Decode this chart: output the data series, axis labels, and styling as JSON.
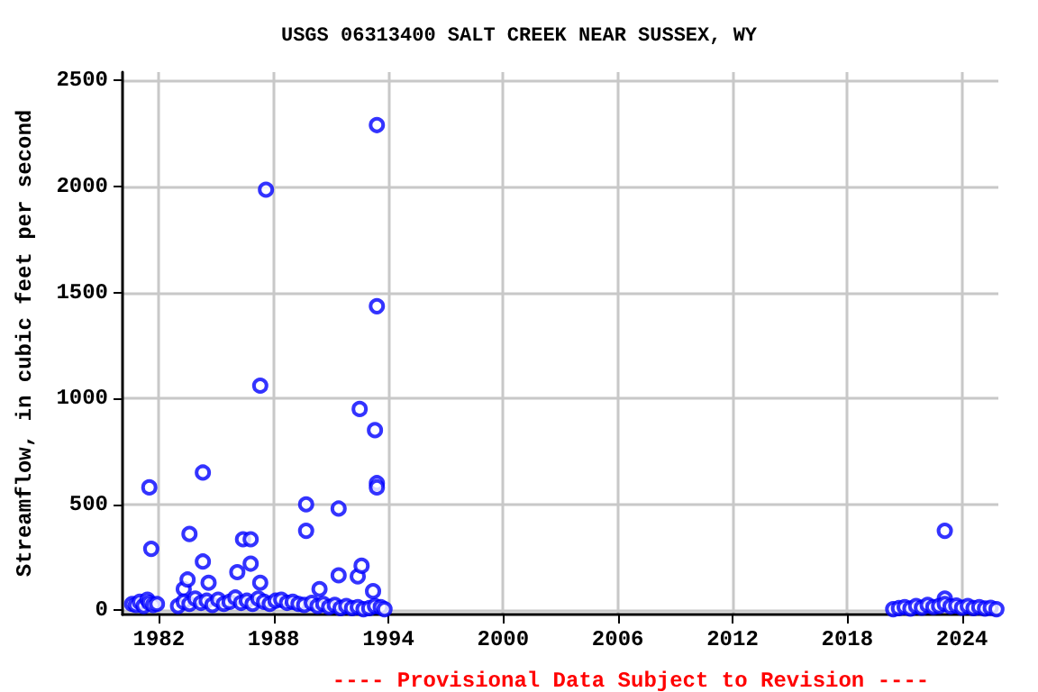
{
  "chart_data": {
    "type": "scatter",
    "title": "USGS 06313400 SALT CREEK NEAR SUSSEX, WY",
    "ylabel": "Streamflow, in cubic feet per second",
    "annotations": [
      "---- Provisional Data Subject to Revision ----"
    ],
    "x": [
      1981.5,
      1981.6,
      1983.6,
      1984.3,
      1984.3,
      1983.3,
      1983.5,
      1984.6,
      1986.1,
      1986.4,
      1986.8,
      1986.8,
      1987.3,
      1987.6,
      1987.3,
      1989.7,
      1989.7,
      1990.4,
      1991.4,
      1991.4,
      1992.5,
      1992.4,
      1992.6,
      1993.3,
      1993.4,
      1993.4,
      1993.4,
      1993.4,
      1993.2,
      2023.1,
      2023.1,
      1980.6,
      1980.8,
      1981.0,
      1981.2,
      1981.4,
      1981.5,
      1981.7,
      1981.9,
      1983.0,
      1983.3,
      1983.6,
      1983.9,
      1984.2,
      1984.5,
      1984.8,
      1985.1,
      1985.4,
      1985.7,
      1986.0,
      1986.3,
      1986.6,
      1986.9,
      1987.2,
      1987.5,
      1987.8,
      1988.1,
      1988.4,
      1988.7,
      1989.0,
      1989.3,
      1989.6,
      1990.0,
      1990.3,
      1990.6,
      1990.9,
      1991.2,
      1991.5,
      1991.8,
      1992.1,
      1992.4,
      1992.7,
      1993.0,
      1993.3,
      1993.6,
      1993.8,
      2020.4,
      2020.7,
      2021.0,
      2021.3,
      2021.6,
      2021.9,
      2022.2,
      2022.5,
      2022.8,
      2023.1,
      2023.4,
      2023.7,
      2024.0,
      2024.3,
      2024.6,
      2024.9,
      2025.2,
      2025.5,
      2025.8
    ],
    "values": [
      580,
      290,
      360,
      650,
      230,
      100,
      145,
      130,
      180,
      335,
      335,
      220,
      1060,
      1985,
      130,
      500,
      375,
      100,
      480,
      165,
      950,
      160,
      210,
      850,
      1435,
      2290,
      600,
      580,
      90,
      375,
      55,
      30,
      25,
      40,
      20,
      50,
      35,
      25,
      30,
      20,
      40,
      30,
      55,
      35,
      45,
      25,
      50,
      30,
      40,
      60,
      35,
      45,
      30,
      55,
      40,
      30,
      45,
      50,
      35,
      40,
      30,
      25,
      35,
      20,
      30,
      15,
      25,
      10,
      20,
      10,
      15,
      5,
      10,
      20,
      15,
      5,
      5,
      10,
      15,
      8,
      20,
      12,
      25,
      15,
      20,
      30,
      18,
      22,
      12,
      20,
      10,
      15,
      8,
      12,
      5
    ],
    "color": "#0000ff",
    "marker": "circle",
    "grid": true,
    "xlim": [
      1980.1,
      2025.9
    ],
    "xticks": [
      1982,
      1988,
      1994,
      2000,
      2006,
      2012,
      2018,
      2024
    ],
    "ylim": [
      -20,
      2540
    ],
    "yticks": [
      0,
      500,
      1000,
      1500,
      2000,
      2500
    ]
  }
}
